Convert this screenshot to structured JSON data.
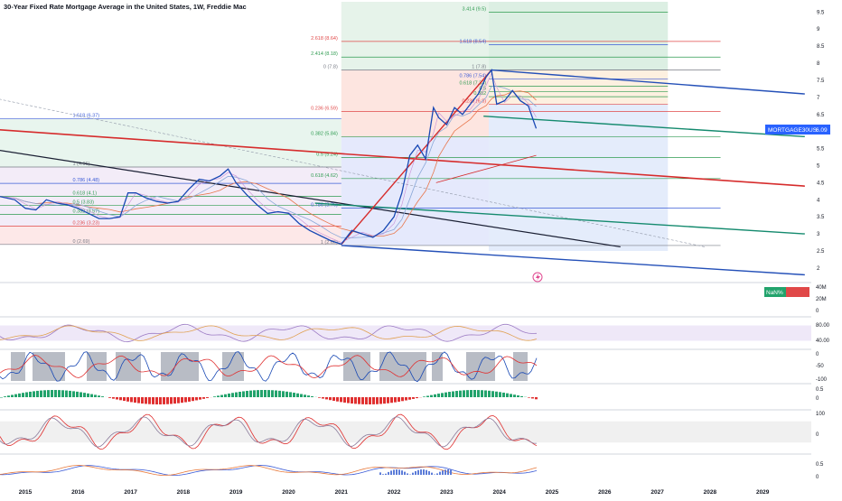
{
  "title": "30-Year Fixed Rate Mortgage Average in the United States, 1W, Freddie Mac",
  "symbol_tag": {
    "label": "MORTGAGE30US",
    "value": "6.09",
    "color": "#2962ff"
  },
  "volume_tag": {
    "label": "NaN%"
  },
  "colors": {
    "price": "#1848b4",
    "ma_fast": "#8aa8d8",
    "ma_slow": "#e8764c",
    "trend_red": "#d62c2c",
    "channel_blue": "#2450b8",
    "channel_teal": "#148a6e",
    "line_dark": "#1a1f33",
    "fib_green": "#2e9b50",
    "fib_red": "#e04848",
    "fib_blue": "#3b5bd6",
    "osc_red": "#e03030",
    "osc_green": "#22a36c"
  },
  "chart_data": [
    {
      "type": "line",
      "panel": "price",
      "title": "30-Year Fixed Rate Mortgage Average in the United States, 1W, Freddie Mac",
      "x_axis": {
        "labels": [
          "2015",
          "2016",
          "2017",
          "2018",
          "2019",
          "2020",
          "2021",
          "2022",
          "2023",
          "2024",
          "2025",
          "2026",
          "2027",
          "2028",
          "2029"
        ]
      },
      "y_axis": {
        "side": "right",
        "range": [
          1.6,
          9.8
        ],
        "ticks": [
          "9.5",
          "9",
          "8.5",
          "8",
          "7.5",
          "7",
          "6.5",
          "6",
          "5.5",
          "5",
          "4.5",
          "4",
          "3.5",
          "3",
          "2.5",
          "2"
        ]
      },
      "series": [
        {
          "role": "price",
          "x": [
            2014.5,
            2014.8,
            2015.0,
            2015.2,
            2015.4,
            2015.6,
            2015.8,
            2016.0,
            2016.2,
            2016.4,
            2016.6,
            2016.8,
            2016.95,
            2017.1,
            2017.3,
            2017.5,
            2017.7,
            2017.9,
            2018.1,
            2018.3,
            2018.5,
            2018.7,
            2018.85,
            2019.0,
            2019.2,
            2019.4,
            2019.6,
            2019.8,
            2020.0,
            2020.2,
            2020.4,
            2020.6,
            2020.8,
            2021.0,
            2021.2,
            2021.4,
            2021.6,
            2021.8,
            2022.0,
            2022.15,
            2022.3,
            2022.45,
            2022.6,
            2022.75,
            2022.85,
            2023.0,
            2023.15,
            2023.3,
            2023.45,
            2023.6,
            2023.75,
            2023.85,
            2023.95,
            2024.1,
            2024.25,
            2024.4,
            2024.55,
            2024.7
          ],
          "y": [
            4.1,
            4.0,
            3.75,
            3.7,
            4.0,
            3.9,
            3.85,
            3.75,
            3.6,
            3.45,
            3.45,
            3.5,
            4.2,
            4.2,
            4.05,
            3.95,
            3.9,
            3.95,
            4.3,
            4.6,
            4.55,
            4.7,
            4.9,
            4.5,
            4.15,
            3.85,
            3.6,
            3.65,
            3.6,
            3.3,
            3.1,
            2.95,
            2.8,
            2.7,
            3.1,
            3.0,
            2.9,
            3.1,
            3.5,
            4.2,
            5.3,
            5.6,
            5.2,
            6.7,
            6.4,
            6.2,
            6.7,
            6.5,
            6.8,
            7.1,
            7.6,
            7.8,
            6.8,
            6.9,
            7.2,
            6.9,
            6.75,
            6.09
          ]
        }
      ],
      "fib_levels_left": [
        {
          "label": "1 (4.96)",
          "value": 4.96
        },
        {
          "label": "0.786 (4.48)",
          "value": 4.48
        },
        {
          "label": "0.618 (4.1)",
          "value": 4.1
        },
        {
          "label": "0.5 (3.83)",
          "value": 3.83
        },
        {
          "label": "0.382 (3.57)",
          "value": 3.57
        },
        {
          "label": "0.236 (3.23)",
          "value": 3.23
        },
        {
          "label": "0 (2.69)",
          "value": 2.69
        },
        {
          "label": "1.618 (6.37)",
          "value": 6.37
        }
      ],
      "fib_levels_mid": [
        {
          "label": "0 (7.8)",
          "value": 7.8
        },
        {
          "label": "0.236 (6.59)",
          "value": 6.59
        },
        {
          "label": "0.382 (5.84)",
          "value": 5.84
        },
        {
          "label": "0.5 (5.24)",
          "value": 5.24
        },
        {
          "label": "0.618 (4.62)",
          "value": 4.62
        },
        {
          "label": "0.786 (3.76)",
          "value": 3.76
        },
        {
          "label": "1 (2.66)",
          "value": 2.66
        },
        {
          "label": "2.618 (8.64)",
          "value": 8.64
        },
        {
          "label": "2.414 (8.18)",
          "value": 8.18
        }
      ],
      "fib_levels_right": [
        {
          "label": "3.414 (9.5)",
          "value": 9.5
        },
        {
          "label": "1.618 (8.54)",
          "value": 8.54
        },
        {
          "label": "1 (7.8)",
          "value": 7.8
        },
        {
          "label": "0.786 (7.54)",
          "value": 7.54
        },
        {
          "label": "0.618 (7.33)",
          "value": 7.33
        },
        {
          "label": "0.5",
          "value": 7.17
        },
        {
          "label": "0.382",
          "value": 7.02
        },
        {
          "label": "0.236 (6.8)",
          "value": 6.8
        }
      ]
    },
    {
      "type": "bar",
      "panel": "volume",
      "y_axis": {
        "ticks": [
          "40M",
          "20M",
          "0"
        ]
      }
    },
    {
      "type": "line",
      "panel": "rsi",
      "y_axis": {
        "ticks": [
          "80.00",
          "40.00"
        ]
      }
    },
    {
      "type": "line",
      "panel": "williams_r",
      "y_axis": {
        "ticks": [
          "0",
          "-50",
          "-100"
        ]
      }
    },
    {
      "type": "bar",
      "panel": "histogram",
      "y_axis": {
        "ticks": [
          "0.5",
          "0"
        ]
      }
    },
    {
      "type": "line",
      "panel": "cci",
      "y_axis": {
        "ticks": [
          "100",
          "0"
        ]
      }
    },
    {
      "type": "line",
      "panel": "macd",
      "y_axis": {
        "ticks": [
          "0.5",
          "0"
        ]
      }
    }
  ]
}
